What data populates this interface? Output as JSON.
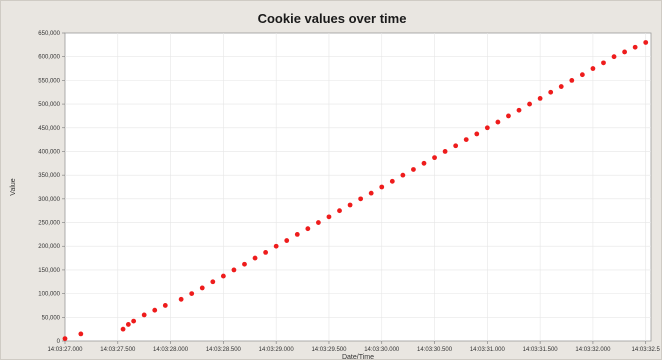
{
  "chart_data": {
    "type": "scatter",
    "title": "Cookie values over time",
    "xlabel": "Date/Time",
    "ylabel": "Value",
    "ylim": [
      0,
      650000
    ],
    "grid": true,
    "legend": "none",
    "point_color": "#ee1c1c",
    "plot_background": "#ffffff",
    "frame_background": "#e9e6e1",
    "grid_color": "#e6e6e6",
    "y_ticks": [
      0,
      50000,
      100000,
      150000,
      200000,
      250000,
      300000,
      350000,
      400000,
      450000,
      500000,
      550000,
      600000,
      650000
    ],
    "y_tick_labels": [
      "0",
      "50,000",
      "100,000",
      "150,000",
      "200,000",
      "250,000",
      "300,000",
      "350,000",
      "400,000",
      "450,000",
      "500,000",
      "550,000",
      "600,000",
      "650,000"
    ],
    "x_ticks": [
      0,
      1,
      2,
      3,
      4,
      5,
      6,
      7,
      8,
      9,
      10,
      11
    ],
    "x_tick_labels": [
      "14:03:27.000",
      "14:03:27.500",
      "14:03:28.000",
      "14:03:28.500",
      "14:03:29.000",
      "14:03:29.500",
      "14:03:30.000",
      "14:03:30.500",
      "14:03:31.000",
      "14:03:31.500",
      "14:03:32.000",
      "14:03:32.5"
    ],
    "points": {
      "x": [
        0.0,
        0.3,
        1.1,
        1.2,
        1.3,
        1.5,
        1.7,
        1.9,
        2.2,
        2.4,
        2.6,
        2.8,
        3.0,
        3.2,
        3.4,
        3.6,
        3.8,
        4.0,
        4.2,
        4.4,
        4.6,
        4.8,
        5.0,
        5.2,
        5.4,
        5.6,
        5.8,
        6.0,
        6.2,
        6.4,
        6.6,
        6.8,
        7.0,
        7.2,
        7.4,
        7.6,
        7.8,
        8.0,
        8.2,
        8.4,
        8.6,
        8.8,
        9.0,
        9.2,
        9.4,
        9.6,
        9.8,
        10.0,
        10.2,
        10.4,
        10.6,
        10.8,
        11.0
      ],
      "y": [
        5000,
        15000,
        25000,
        35000,
        42000,
        55000,
        65000,
        75000,
        88000,
        100000,
        112000,
        125000,
        137000,
        150000,
        162000,
        175000,
        187000,
        200000,
        212000,
        225000,
        237000,
        250000,
        262000,
        275000,
        287000,
        300000,
        312000,
        325000,
        337000,
        350000,
        362000,
        375000,
        387000,
        400000,
        412000,
        425000,
        437000,
        450000,
        462000,
        475000,
        487000,
        500000,
        512000,
        525000,
        537000,
        550000,
        562000,
        575000,
        587000,
        600000,
        610000,
        620000,
        630000
      ]
    }
  }
}
